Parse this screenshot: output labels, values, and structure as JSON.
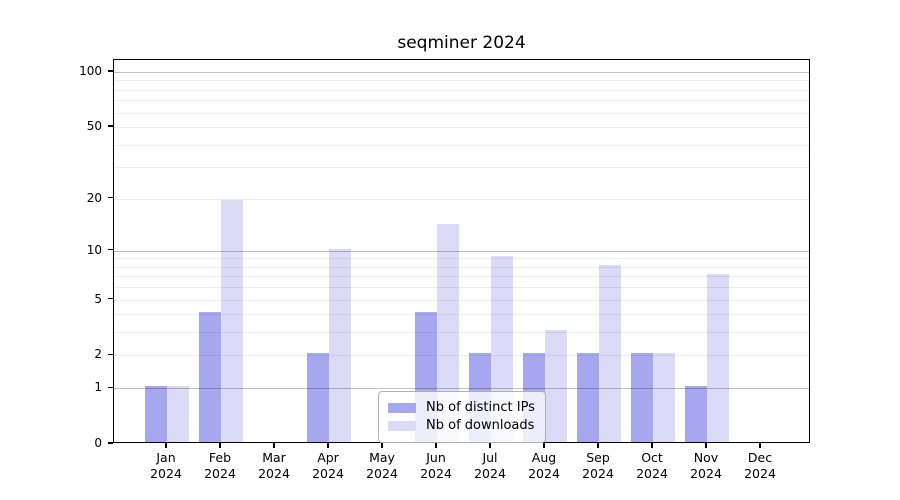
{
  "title": "seqminer 2024",
  "colors": {
    "ips_bar": "#a7a7f0",
    "downloads_bar": "#dbdbf8",
    "grid_minor": "rgba(0,0,0,0.07)",
    "grid_major": "rgba(0,0,0,0.24)",
    "axis": "#000000",
    "legend_border": "#b0b0b0",
    "legend_background": "rgba(255,255,255,0.8)"
  },
  "legend": {
    "items": [
      {
        "label": "Nb of distinct IPs",
        "color_key": "ips_bar"
      },
      {
        "label": "Nb of downloads",
        "color_key": "downloads_bar"
      }
    ]
  },
  "chart_data": {
    "type": "bar",
    "title": "seqminer 2024",
    "categories": [
      "Jan 2024",
      "Feb 2024",
      "Mar 2024",
      "Apr 2024",
      "May 2024",
      "Jun 2024",
      "Jul 2024",
      "Aug 2024",
      "Sep 2024",
      "Oct 2024",
      "Nov 2024",
      "Dec 2024"
    ],
    "series": [
      {
        "name": "Nb of distinct IPs",
        "color_key": "ips_bar",
        "values": [
          1,
          4,
          0,
          2,
          0,
          4,
          2,
          2,
          2,
          2,
          1,
          0
        ]
      },
      {
        "name": "Nb of downloads",
        "color_key": "downloads_bar",
        "values": [
          1,
          19,
          0,
          10,
          0,
          14,
          9,
          3,
          8,
          2,
          7,
          0
        ]
      }
    ],
    "xlabel": "",
    "ylabel": "",
    "yscale": "log1p",
    "ylim": [
      0,
      116
    ],
    "y_tick_values": [
      0,
      1,
      2,
      5,
      10,
      20,
      50,
      100
    ],
    "y_grid_minor": [
      2,
      3,
      4,
      5,
      6,
      7,
      8,
      9,
      20,
      30,
      40,
      50,
      60,
      70,
      80,
      90
    ],
    "y_grid_major": [
      1,
      10,
      100
    ],
    "grid": true,
    "legend_position": "inside-bottom-center"
  }
}
